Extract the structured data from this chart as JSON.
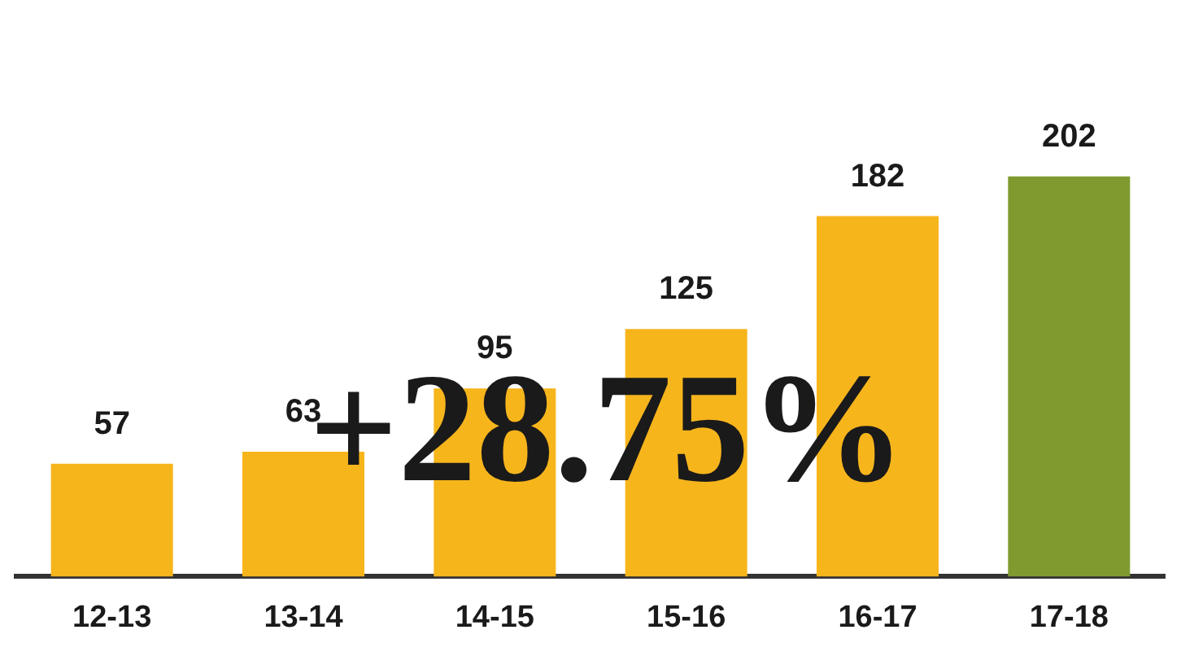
{
  "chart_data": {
    "type": "bar",
    "categories": [
      "12-13",
      "13-14",
      "14-15",
      "15-16",
      "16-17",
      "17-18"
    ],
    "values": [
      57,
      63,
      95,
      125,
      182,
      202
    ],
    "colors": [
      "#f7b51c",
      "#f7b51c",
      "#f7b51c",
      "#f7b51c",
      "#f7b51c",
      "#7f9b2f"
    ],
    "data_labels": true,
    "annotations": [
      "+28.75%"
    ],
    "grid": false,
    "legend": false
  }
}
